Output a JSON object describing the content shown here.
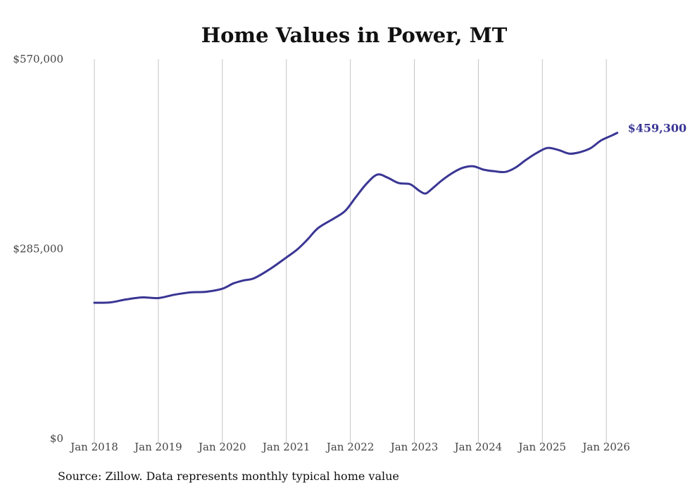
{
  "chart_data": {
    "type": "line",
    "title": "Home Values in Power, MT",
    "xlabel": "",
    "ylabel": "",
    "ylim": [
      0,
      570000
    ],
    "y_ticks": [
      {
        "value": 0,
        "label": "$0"
      },
      {
        "value": 285000,
        "label": "$285,000"
      },
      {
        "value": 570000,
        "label": "$570,000"
      }
    ],
    "x_ticks": [
      {
        "value": 2018,
        "label": "Jan 2018"
      },
      {
        "value": 2019,
        "label": "Jan 2019"
      },
      {
        "value": 2020,
        "label": "Jan 2020"
      },
      {
        "value": 2021,
        "label": "Jan 2021"
      },
      {
        "value": 2022,
        "label": "Jan 2022"
      },
      {
        "value": 2023,
        "label": "Jan 2023"
      },
      {
        "value": 2024,
        "label": "Jan 2024"
      },
      {
        "value": 2025,
        "label": "Jan 2025"
      },
      {
        "value": 2026,
        "label": "Jan 2026"
      }
    ],
    "xlim": [
      2018,
      2026.17
    ],
    "grid": "vertical",
    "series": [
      {
        "name": "Typical home value",
        "color": "#3a3694",
        "points": [
          [
            2018.0,
            204000
          ],
          [
            2018.25,
            204500
          ],
          [
            2018.5,
            209000
          ],
          [
            2018.75,
            212000
          ],
          [
            2019.0,
            211000
          ],
          [
            2019.25,
            216000
          ],
          [
            2019.5,
            219500
          ],
          [
            2019.75,
            220500
          ],
          [
            2020.0,
            225000
          ],
          [
            2020.17,
            233000
          ],
          [
            2020.33,
            237500
          ],
          [
            2020.5,
            241000
          ],
          [
            2020.75,
            255000
          ],
          [
            2021.0,
            272000
          ],
          [
            2021.17,
            284000
          ],
          [
            2021.33,
            299000
          ],
          [
            2021.5,
            316500
          ],
          [
            2021.75,
            331000
          ],
          [
            2021.92,
            342000
          ],
          [
            2022.08,
            362000
          ],
          [
            2022.25,
            382500
          ],
          [
            2022.42,
            396500
          ],
          [
            2022.58,
            392000
          ],
          [
            2022.75,
            384000
          ],
          [
            2022.92,
            382500
          ],
          [
            2023.0,
            378000
          ],
          [
            2023.08,
            372000
          ],
          [
            2023.17,
            368000
          ],
          [
            2023.25,
            373000
          ],
          [
            2023.42,
            387000
          ],
          [
            2023.58,
            398000
          ],
          [
            2023.75,
            406500
          ],
          [
            2023.92,
            409000
          ],
          [
            2024.08,
            404000
          ],
          [
            2024.25,
            401500
          ],
          [
            2024.42,
            400500
          ],
          [
            2024.58,
            407000
          ],
          [
            2024.75,
            419000
          ],
          [
            2024.92,
            429500
          ],
          [
            2025.08,
            436500
          ],
          [
            2025.25,
            433500
          ],
          [
            2025.42,
            428000
          ],
          [
            2025.58,
            430000
          ],
          [
            2025.75,
            436000
          ],
          [
            2025.92,
            448000
          ],
          [
            2026.08,
            455000
          ],
          [
            2026.17,
            459300
          ]
        ],
        "end_label": "$459,300"
      }
    ],
    "source": "Source: Zillow. Data represents monthly typical home value"
  }
}
